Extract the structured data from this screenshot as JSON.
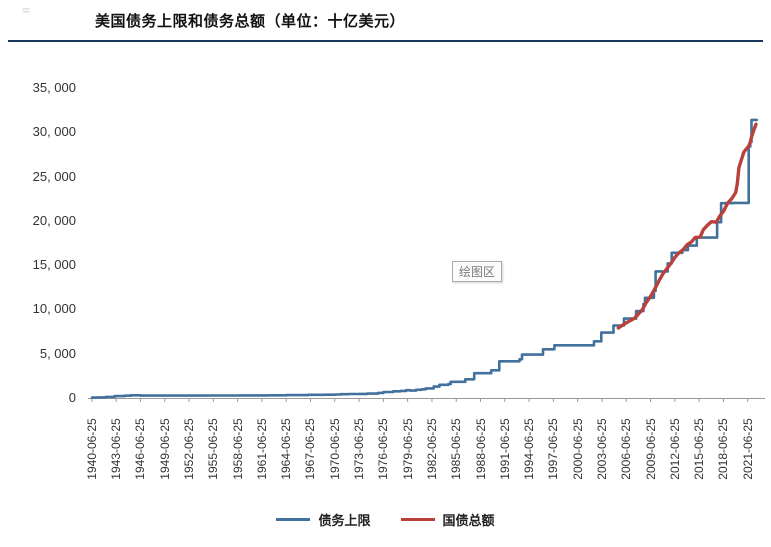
{
  "header": {
    "title": "美国债务上限和债务总额（单位：十亿美元）",
    "rule_color": "#17375d"
  },
  "corner_mark": "≈",
  "chart_data": {
    "type": "line",
    "title": "美国债务上限和债务总额",
    "unit": "十亿美元",
    "plot_label": "绘图区",
    "grid": false,
    "legend_position": "bottom",
    "ylim": [
      0,
      35000
    ],
    "x_domain": [
      1940,
      2023
    ],
    "yticks": [
      {
        "value": 0,
        "label": "0"
      },
      {
        "value": 5000,
        "label": "5, 000"
      },
      {
        "value": 10000,
        "label": "10, 000"
      },
      {
        "value": 15000,
        "label": "15, 000"
      },
      {
        "value": 20000,
        "label": "20, 000"
      },
      {
        "value": 25000,
        "label": "25, 000"
      },
      {
        "value": 30000,
        "label": "30, 000"
      },
      {
        "value": 35000,
        "label": "35, 000"
      }
    ],
    "xticks": [
      "1940-06-25",
      "1943-06-25",
      "1946-06-25",
      "1949-06-25",
      "1952-06-25",
      "1955-06-25",
      "1958-06-25",
      "1961-06-25",
      "1964-06-25",
      "1967-06-25",
      "1970-06-25",
      "1973-06-25",
      "1976-06-25",
      "1979-06-25",
      "1982-06-25",
      "1985-06-25",
      "1988-06-25",
      "1991-06-25",
      "1994-06-25",
      "1997-06-25",
      "2000-06-25",
      "2003-06-25",
      "2006-06-25",
      "2009-06-25",
      "2012-06-25",
      "2015-06-25",
      "2018-06-25",
      "2021-06-25"
    ],
    "series": [
      {
        "name": "债务上限",
        "color": "#41719c",
        "style": "step",
        "stroke_width": 2.6,
        "points": [
          [
            1940.5,
            49
          ],
          [
            1941.2,
            65
          ],
          [
            1942.2,
            125
          ],
          [
            1943.3,
            210
          ],
          [
            1944.5,
            260
          ],
          [
            1945.3,
            300
          ],
          [
            1946.5,
            275
          ],
          [
            1954.6,
            281
          ],
          [
            1958.7,
            288
          ],
          [
            1959.5,
            295
          ],
          [
            1960.5,
            293
          ],
          [
            1961.5,
            298
          ],
          [
            1962.3,
            308
          ],
          [
            1963.5,
            309
          ],
          [
            1964.5,
            324
          ],
          [
            1965.5,
            328
          ],
          [
            1966.5,
            330
          ],
          [
            1967.2,
            358
          ],
          [
            1968.5,
            365
          ],
          [
            1969.3,
            377
          ],
          [
            1970.5,
            395
          ],
          [
            1971.2,
            430
          ],
          [
            1972.2,
            450
          ],
          [
            1973.5,
            465
          ],
          [
            1974.5,
            495
          ],
          [
            1975.8,
            577
          ],
          [
            1976.5,
            682
          ],
          [
            1977.7,
            752
          ],
          [
            1978.6,
            798
          ],
          [
            1979.3,
            879
          ],
          [
            1979.8,
            830
          ],
          [
            1980.5,
            925
          ],
          [
            1981.2,
            985
          ],
          [
            1981.7,
            1080
          ],
          [
            1982.7,
            1290
          ],
          [
            1983.4,
            1490
          ],
          [
            1984.5,
            1573
          ],
          [
            1984.8,
            1824
          ],
          [
            1986.6,
            2111
          ],
          [
            1987.7,
            2800
          ],
          [
            1989.8,
            3123
          ],
          [
            1990.8,
            4145
          ],
          [
            1993.3,
            4370
          ],
          [
            1993.6,
            4900
          ],
          [
            1996.2,
            5500
          ],
          [
            1997.6,
            5950
          ],
          [
            2002.5,
            6400
          ],
          [
            2003.4,
            7384
          ],
          [
            2004.9,
            8184
          ],
          [
            2006.2,
            8965
          ],
          [
            2007.7,
            9815
          ],
          [
            2008.6,
            10615
          ],
          [
            2008.8,
            11315
          ],
          [
            2009.9,
            12104
          ],
          [
            2010.1,
            14294
          ],
          [
            2011.6,
            15194
          ],
          [
            2012.1,
            16394
          ],
          [
            2013.4,
            16699
          ],
          [
            2014.1,
            17212
          ],
          [
            2015.2,
            18113
          ],
          [
            2017.7,
            19847
          ],
          [
            2018.2,
            21988
          ],
          [
            2019.6,
            22030
          ],
          [
            2021.6,
            28400
          ],
          [
            2021.8,
            28900
          ],
          [
            2021.95,
            31400
          ],
          [
            2022.6,
            31400
          ]
        ]
      },
      {
        "name": "国债总额",
        "color": "#b8413c",
        "style": "line",
        "stroke_width": 3.4,
        "points": [
          [
            2005.5,
            7900
          ],
          [
            2006.5,
            8500
          ],
          [
            2007.5,
            9000
          ],
          [
            2008.5,
            10000
          ],
          [
            2008.9,
            10700
          ],
          [
            2009.5,
            11500
          ],
          [
            2010,
            12300
          ],
          [
            2010.5,
            13200
          ],
          [
            2011,
            14000
          ],
          [
            2011.5,
            14600
          ],
          [
            2012,
            15200
          ],
          [
            2012.5,
            15900
          ],
          [
            2013,
            16400
          ],
          [
            2013.5,
            16740
          ],
          [
            2014,
            17300
          ],
          [
            2014.5,
            17600
          ],
          [
            2015,
            18120
          ],
          [
            2015.6,
            18150
          ],
          [
            2016,
            19000
          ],
          [
            2016.5,
            19500
          ],
          [
            2017,
            19900
          ],
          [
            2017.6,
            19850
          ],
          [
            2018,
            20500
          ],
          [
            2018.5,
            21100
          ],
          [
            2019,
            22000
          ],
          [
            2019.5,
            22500
          ],
          [
            2020,
            23200
          ],
          [
            2020.2,
            24200
          ],
          [
            2020.4,
            26000
          ],
          [
            2020.7,
            26900
          ],
          [
            2021,
            27750
          ],
          [
            2021.3,
            28100
          ],
          [
            2021.6,
            28430
          ],
          [
            2021.8,
            28900
          ],
          [
            2022,
            29600
          ],
          [
            2022.3,
            30400
          ],
          [
            2022.5,
            30900
          ]
        ]
      }
    ]
  },
  "legend": {
    "items": [
      {
        "label": "债务上限",
        "color": "#41719c"
      },
      {
        "label": "国债总额",
        "color": "#b8413c"
      }
    ]
  }
}
